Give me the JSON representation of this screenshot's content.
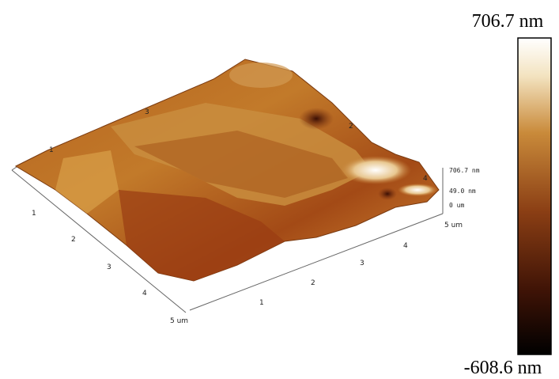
{
  "colorbar": {
    "max_label": "706.7 nm",
    "min_label": "-608.6 nm"
  },
  "axes": {
    "left_ticks": [
      "1",
      "2",
      "3",
      "4",
      "5 um"
    ],
    "front_ticks": [
      "1",
      "2",
      "3",
      "4",
      "5 um"
    ],
    "edge_labels": [
      "1",
      "3",
      "2",
      "4"
    ],
    "z_labels": [
      "706.7 nm",
      "49.0 nm",
      "0 um"
    ]
  }
}
